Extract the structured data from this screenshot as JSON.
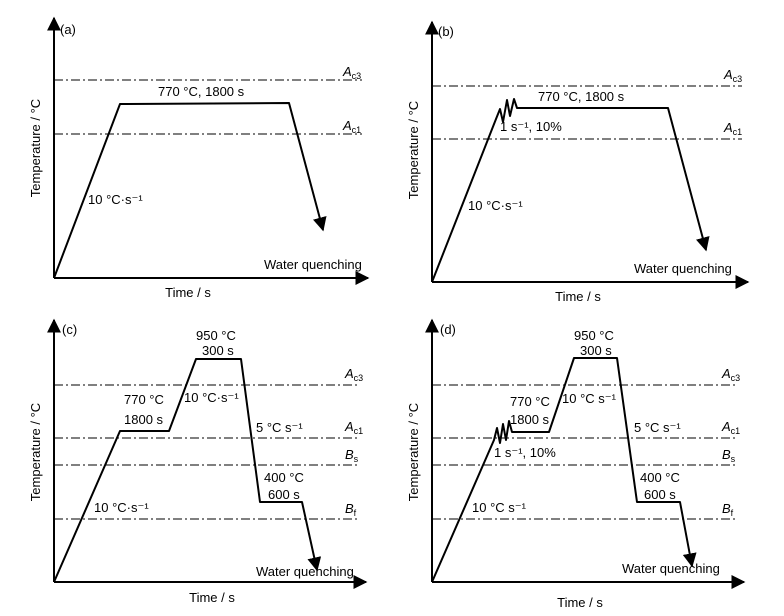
{
  "panels": [
    {
      "letter": "(a)",
      "ylabel": "Temperature / °C",
      "xlabel": "Time / s",
      "lines": [
        {
          "sym": "A",
          "sub": "c3"
        },
        {
          "sym": "A",
          "sub": "c1"
        }
      ],
      "labels": [
        "770 °C, 1800 s",
        "10 °C·s⁻¹",
        "Water quenching"
      ]
    },
    {
      "letter": "(b)",
      "ylabel": "Temperature / °C",
      "xlabel": "Time / s",
      "lines": [
        {
          "sym": "A",
          "sub": "c3"
        },
        {
          "sym": "A",
          "sub": "c1"
        }
      ],
      "labels": [
        "770 °C, 1800 s",
        "1 s⁻¹, 10%",
        "10 °C·s⁻¹",
        "Water quenching"
      ]
    },
    {
      "letter": "(c)",
      "ylabel": "Temperature / °C",
      "xlabel": "Time / s",
      "lines": [
        {
          "sym": "A",
          "sub": "c3"
        },
        {
          "sym": "A",
          "sub": "c1"
        },
        {
          "sym": "B",
          "sub": "s"
        },
        {
          "sym": "B",
          "sub": "f"
        }
      ],
      "labels": [
        "950 °C",
        "300 s",
        "770 °C",
        "1800 s",
        "10 °C·s⁻¹",
        "5 °C s⁻¹",
        "400 °C",
        "600 s",
        "10 °C·s⁻¹",
        "Water quenching"
      ]
    },
    {
      "letter": "(d)",
      "ylabel": "Temperature / °C",
      "xlabel": "Time / s",
      "lines": [
        {
          "sym": "A",
          "sub": "c3"
        },
        {
          "sym": "A",
          "sub": "c1"
        },
        {
          "sym": "B",
          "sub": "s"
        },
        {
          "sym": "B",
          "sub": "f"
        }
      ],
      "labels": [
        "950 °C",
        "300 s",
        "770 °C",
        "1800 s",
        "10 °C s⁻¹",
        "5 °C s⁻¹",
        "1 s⁻¹, 10%",
        "400 °C",
        "600 s",
        "10 °C s⁻¹",
        "Water quenching"
      ]
    }
  ]
}
